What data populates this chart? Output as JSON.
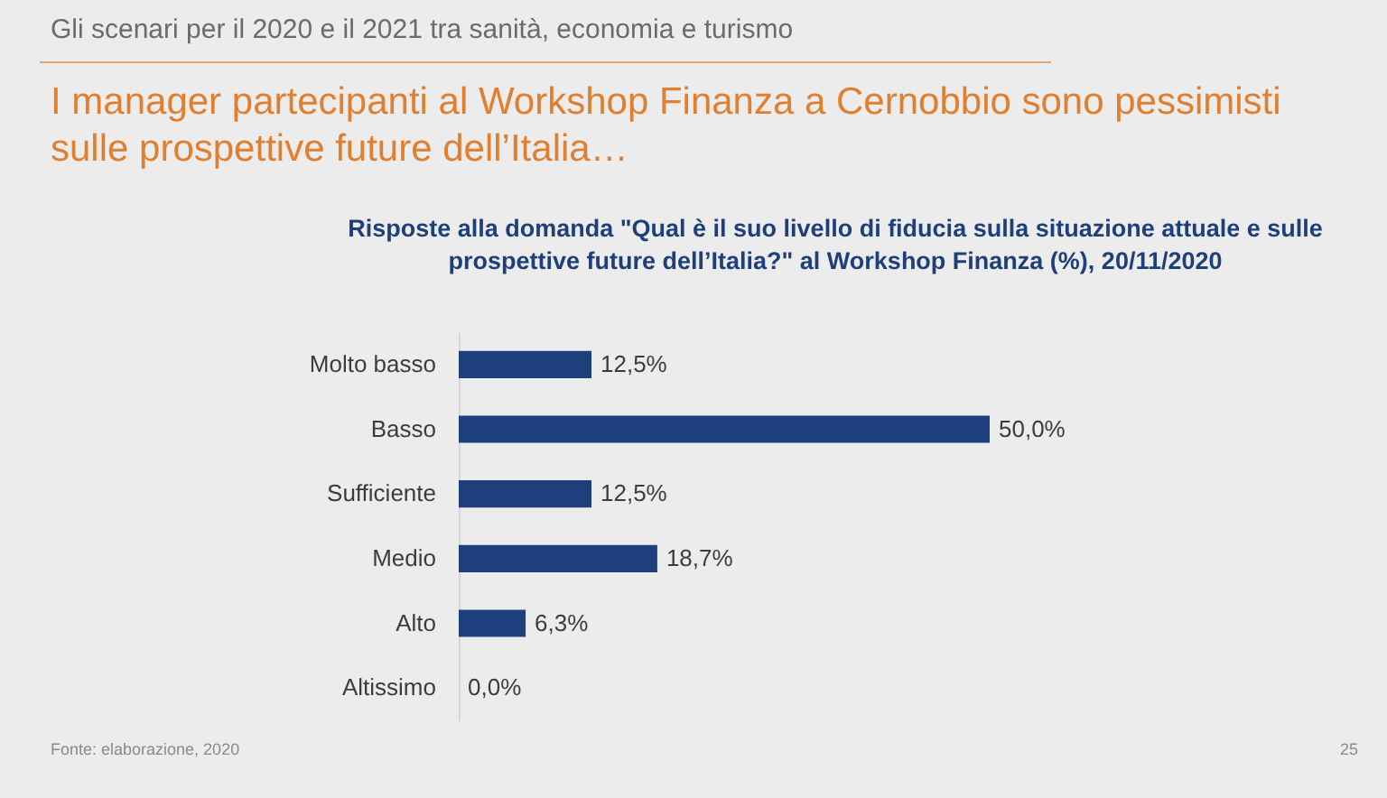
{
  "chart_data": {
    "type": "bar",
    "orientation": "horizontal",
    "title": "I manager partecipanti al Workshop Finanza a Cernobbio sono pessimisti sulle prospettive future dell’Italia…",
    "subtitle": "Risposte alla domanda \"Qual è il suo livello di fiducia sulla situazione attuale e sulle prospettive future dell’Italia?\" al Workshop Finanza (%), 20/11/2020",
    "annotations": [
      "Gli scenari per il 2020 e il 2021 tra sanità, economia e turismo",
      "Fonte: elaborazione, 2020",
      "25"
    ],
    "categories": [
      "Molto basso",
      "Basso",
      "Sufficiente",
      "Medio",
      "Alto",
      "Altissimo"
    ],
    "values": [
      12.5,
      50.0,
      12.5,
      18.7,
      6.3,
      0.0
    ],
    "value_labels": [
      "12,5%",
      "50,0%",
      "12,5%",
      "18,7%",
      "6,3%",
      "0,0%"
    ],
    "color": "#1d3f7c",
    "tick_labels": "y"
  }
}
